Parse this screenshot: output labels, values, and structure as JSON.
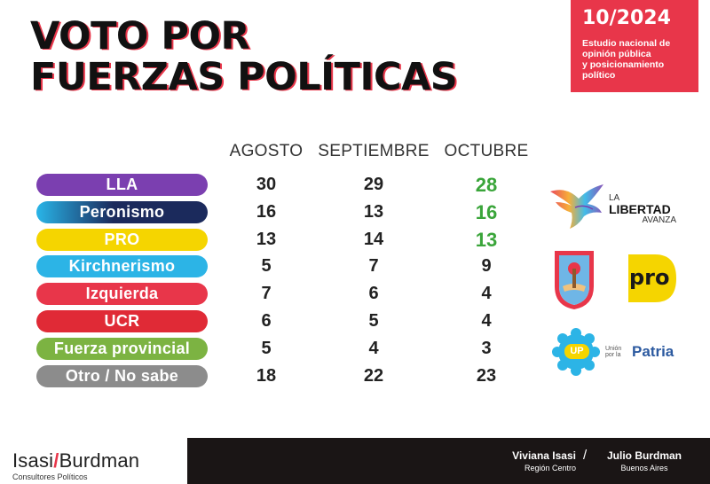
{
  "header": {
    "title_line1": "VOTO POR",
    "title_line2": "FUERZAS POLÍTICAS",
    "date": "10/2024",
    "desc_line1": "Estudio nacional de",
    "desc_line2": "opinión pública",
    "desc_line3": "y posicionamiento",
    "desc_line4": "político"
  },
  "colors": {
    "accent": "#e8364a",
    "highlight": "#3aa53a",
    "footer_bg": "#1a1515"
  },
  "chart_data": {
    "type": "table",
    "columns": [
      "AGOSTO",
      "SEPTIEMBRE",
      "OCTUBRE"
    ],
    "rows": [
      {
        "label": "LLA",
        "values": [
          "30",
          "29",
          "28"
        ],
        "color": "#7b3fb0",
        "highlight": true
      },
      {
        "label": "Peronismo",
        "values": [
          "16",
          "13",
          "16"
        ],
        "color": "#1b2a5c",
        "gradient_from": "#29b5e8",
        "highlight": true
      },
      {
        "label": "PRO",
        "values": [
          "13",
          "14",
          "13"
        ],
        "color": "#f5d500",
        "highlight": true
      },
      {
        "label": "Kirchnerismo",
        "values": [
          "5",
          "7",
          "9"
        ],
        "color": "#2cb4e6",
        "highlight": false
      },
      {
        "label": "Izquierda",
        "values": [
          "7",
          "6",
          "4"
        ],
        "color": "#e8364a",
        "highlight": false
      },
      {
        "label": "UCR",
        "values": [
          "6",
          "5",
          "4"
        ],
        "color": "#e02a36",
        "highlight": false
      },
      {
        "label": "Fuerza provincial",
        "values": [
          "5",
          "4",
          "3"
        ],
        "color": "#7cb342",
        "highlight": false
      },
      {
        "label": "Otro / No sabe",
        "values": [
          "18",
          "22",
          "23"
        ],
        "color": "#8c8c8c",
        "highlight": false
      }
    ]
  },
  "logos": {
    "lla_line1": "LA",
    "lla_line2": "LIBERTAD",
    "lla_line3": "AVANZA",
    "pro": "pro",
    "up_badge": "UP",
    "up_small1": "Unión",
    "up_small2": "por la",
    "up_word": "Patria",
    "icons": [
      "lla-dove-icon",
      "ucr-shield-icon",
      "pro-logo-icon",
      "up-star-icon"
    ]
  },
  "footer": {
    "person1_name": "Viviana Isasi",
    "person1_region": "Región Centro",
    "separator": "/",
    "person2_name": "Julio Burdman",
    "person2_region": "Buenos Aires"
  },
  "brand": {
    "part1": "Isasi",
    "slash": "/",
    "part2": "Burdman",
    "sub": "Consultores Políticos"
  }
}
